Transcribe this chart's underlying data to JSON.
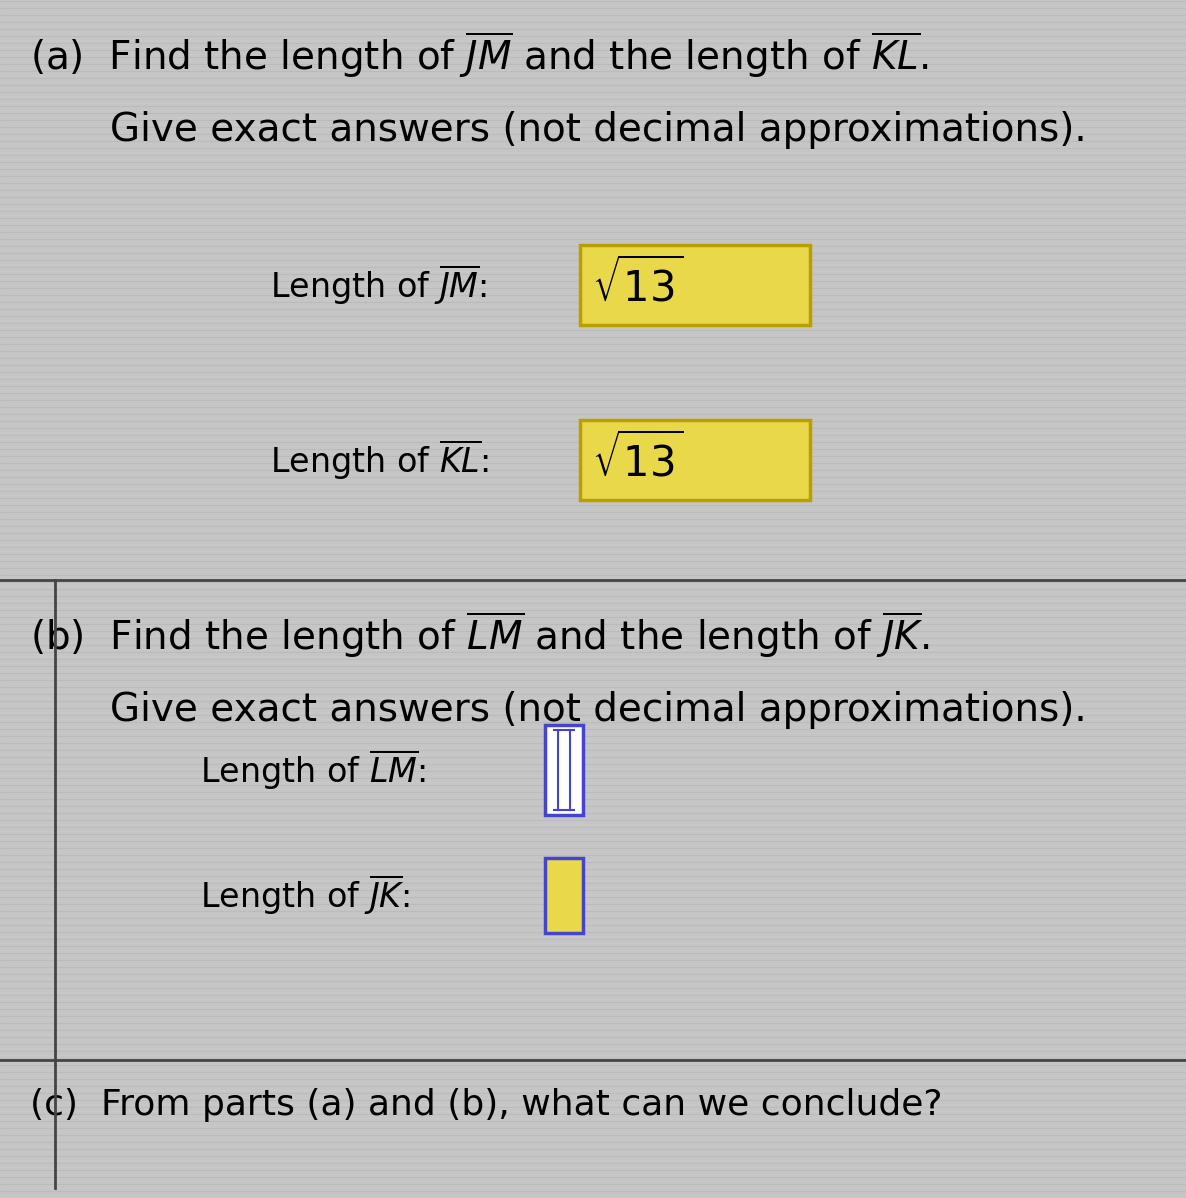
{
  "bg_color": "#c5c5c5",
  "stripe_color_dark": "#b8b8b8",
  "stripe_color_light": "#cccccc",
  "answer_box_color_filled": "#e8d84a",
  "answer_box_border_filled": "#b8a000",
  "answer_box_border_LM": "#4444cc",
  "answer_box_border_JK": "#4444cc",
  "answer_box_fill_JK": "#e8d84a",
  "divider_color": "#444444",
  "left_border_color": "#444444",
  "part_a_line1": "(a)  Find the length of $\\overline{JM}$ and the length of $\\overline{KL}$.",
  "part_a_line2": "Give exact answers (not decimal approximations).",
  "part_b_line1": "(b)  Find the length of $\\overline{LM}$ and the length of $\\overline{JK}$.",
  "part_b_line2": "Give exact answers (not decimal approximations).",
  "part_c_line1": "(c)  From parts (a) and (b), what can we conclude?",
  "jm_label": "Length of $\\overline{JM}$:",
  "kl_label": "Length of $\\overline{KL}$:",
  "lm_label": "Length of $\\overline{LM}$:",
  "jk_label": "Length of $\\overline{JK}$:",
  "jm_answer": "$\\sqrt{13}$",
  "kl_answer": "$\\sqrt{13}$",
  "fs_header": 28,
  "fs_label": 24,
  "fs_answer": 26
}
